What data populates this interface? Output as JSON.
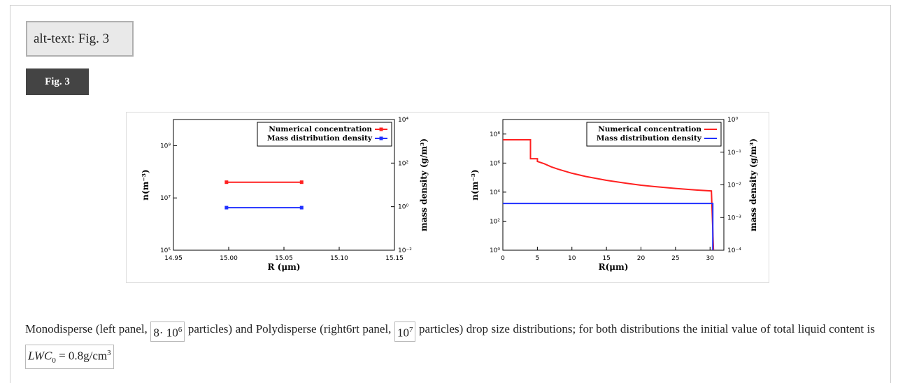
{
  "alt_text": "alt-text: Fig. 3",
  "fig_label": "Fig. 3",
  "caption": {
    "part1": "Monodisperse (left panel, ",
    "count1": "8· 10",
    "count1_exp": "6",
    "part2": " particles) and Polydisperse (right6rt panel, ",
    "count2": "10",
    "count2_exp": "7",
    "part3": " particles) drop size distributions; for both distributions the initial value of total liquid content is ",
    "lwc_var": "LWC",
    "lwc_sub": "0",
    "lwc_rest": " = 0.8g/cm",
    "lwc_exp": "3"
  },
  "chart_data": [
    {
      "type": "line",
      "panel": "left",
      "xlabel": "R (μm)",
      "ylabel": "n(m⁻³)",
      "y2label": "mass density (g/m³)",
      "xlim": [
        14.95,
        15.15
      ],
      "x_ticks": [
        "14.95",
        "15.00",
        "15.05",
        "15.10",
        "15.15"
      ],
      "y_scale": "log",
      "ylim": [
        100000,
        10000000000
      ],
      "y_ticks": [
        "10⁵",
        "10⁷",
        "10⁹"
      ],
      "y2_scale": "log",
      "y2lim": [
        0.01,
        10000
      ],
      "y2_ticks": [
        "10⁻²",
        "10⁰",
        "10²",
        "10⁴"
      ],
      "legend_position": "top-right",
      "series": [
        {
          "name": "Numerical concentration",
          "color": "#ff2020",
          "axis": "left",
          "points": [
            [
              14.998,
              40000000
            ],
            [
              15.066,
              40000000
            ]
          ]
        },
        {
          "name": "Mass distribution density",
          "color": "#2030ff",
          "axis": "right",
          "points": [
            [
              14.998,
              0.9
            ],
            [
              15.066,
              0.9
            ]
          ]
        }
      ]
    },
    {
      "type": "line",
      "panel": "right",
      "xlabel": "R(μm)",
      "ylabel": "n(m⁻³)",
      "y2label": "mass density (g/m³)",
      "xlim": [
        0,
        32
      ],
      "x_ticks": [
        "0",
        "5",
        "10",
        "15",
        "20",
        "25",
        "30"
      ],
      "y_scale": "log",
      "ylim": [
        1,
        1000000000
      ],
      "y_ticks": [
        "10⁰",
        "10²",
        "10⁴",
        "10⁶",
        "10⁸"
      ],
      "y2_scale": "log",
      "y2lim": [
        0.0001,
        1
      ],
      "y2_ticks": [
        "10⁻⁴",
        "10⁻³",
        "10⁻²",
        "10⁻¹",
        "10⁰"
      ],
      "legend_position": "top-right",
      "series": [
        {
          "name": "Numerical concentration",
          "color": "#ff2020",
          "axis": "left",
          "points": [
            [
              0,
              40000000
            ],
            [
              4,
              40000000
            ],
            [
              4,
              2000000
            ],
            [
              5,
              2000000
            ],
            [
              5,
              1300000
            ],
            [
              6,
              900000
            ],
            [
              7,
              550000
            ],
            [
              8,
              380000
            ],
            [
              10,
              200000
            ],
            [
              12,
              120000
            ],
            [
              15,
              65000
            ],
            [
              18,
              40000
            ],
            [
              20,
              30000
            ],
            [
              22,
              24000
            ],
            [
              25,
              18000
            ],
            [
              28,
              14000
            ],
            [
              30.2,
              12000
            ],
            [
              30.5,
              0.01
            ]
          ]
        },
        {
          "name": "Mass distribution density",
          "color": "#2030ff",
          "axis": "right",
          "points": [
            [
              0,
              0.0027
            ],
            [
              30.4,
              0.0027
            ],
            [
              30.4,
              0.0001
            ]
          ]
        }
      ]
    }
  ]
}
